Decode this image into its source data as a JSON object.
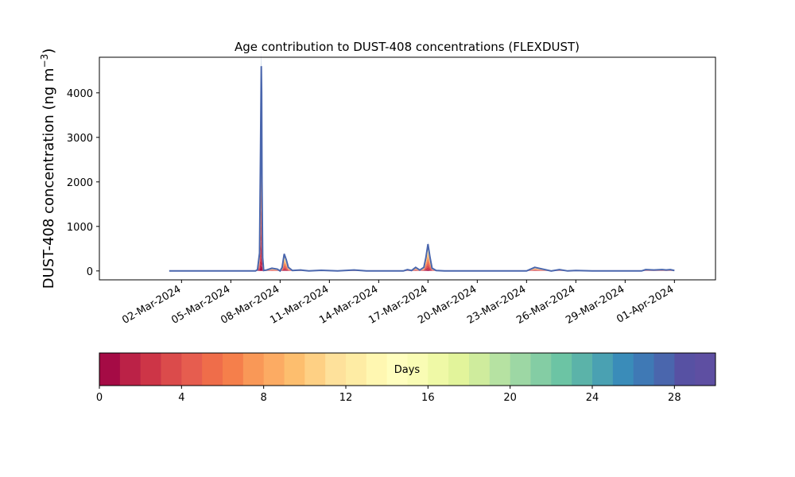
{
  "chart_data": {
    "type": "area",
    "title": "Age contribution to DUST-408 concentrations (FLEXDUST)",
    "ylabel": "DUST-408 concentration (ng m",
    "ylabel_sup": "−3",
    "ylabel_close": ")",
    "xlabel": "",
    "ylim": [
      -200,
      4800
    ],
    "yticks": [
      0,
      1000,
      2000,
      3000,
      4000
    ],
    "x_range": [
      "2024-02-26T00:00",
      "2024-04-03T12:00"
    ],
    "xticks": [
      "02-Mar-2024",
      "05-Mar-2024",
      "08-Mar-2024",
      "11-Mar-2024",
      "14-Mar-2024",
      "17-Mar-2024",
      "20-Mar-2024",
      "23-Mar-2024",
      "26-Mar-2024",
      "29-Mar-2024",
      "01-Apr-2024"
    ],
    "xtick_dates": [
      "2024-03-02",
      "2024-03-05",
      "2024-03-08",
      "2024-03-11",
      "2024-03-14",
      "2024-03-17",
      "2024-03-20",
      "2024-03-23",
      "2024-03-26",
      "2024-03-29",
      "2024-04-01"
    ],
    "total_series": {
      "name": "",
      "color": "#4a66ad",
      "x": [
        "2024-03-01T06:00",
        "2024-03-06T12:00",
        "2024-03-06T15:00",
        "2024-03-06T18:00",
        "2024-03-06T19:30",
        "2024-03-06T20:30",
        "2024-03-06T21:00",
        "2024-03-06T21:30",
        "2024-03-06T22:30",
        "2024-03-07T00:00",
        "2024-03-07T04:00",
        "2024-03-07T12:00",
        "2024-03-07T20:00",
        "2024-03-08T00:00",
        "2024-03-08T03:00",
        "2024-03-08T06:00",
        "2024-03-08T09:00",
        "2024-03-08T12:00",
        "2024-03-08T18:00",
        "2024-03-09T06:00",
        "2024-03-09T18:00",
        "2024-03-10T12:00",
        "2024-03-11T12:00",
        "2024-03-12T12:00",
        "2024-03-13T06:00",
        "2024-03-13T12:00",
        "2024-03-14T12:00",
        "2024-03-15T12:00",
        "2024-03-15T18:00",
        "2024-03-16T00:00",
        "2024-03-16T06:00",
        "2024-03-16T12:00",
        "2024-03-16T18:00",
        "2024-03-16T21:00",
        "2024-03-17T00:00",
        "2024-03-17T03:00",
        "2024-03-17T06:00",
        "2024-03-17T12:00",
        "2024-03-18T00:00",
        "2024-03-20T00:00",
        "2024-03-23T00:00",
        "2024-03-23T12:00",
        "2024-03-24T00:00",
        "2024-03-24T12:00",
        "2024-03-25T00:00",
        "2024-03-25T12:00",
        "2024-03-26T00:00",
        "2024-03-27T00:00",
        "2024-03-28T00:00",
        "2024-03-29T00:00",
        "2024-03-30T00:00",
        "2024-03-30T06:00",
        "2024-03-30T18:00",
        "2024-03-31T06:00",
        "2024-03-31T12:00",
        "2024-03-31T18:00",
        "2024-04-01T00:00"
      ],
      "values": [
        0,
        0,
        30,
        400,
        2800,
        4600,
        4000,
        2000,
        300,
        10,
        20,
        60,
        40,
        0,
        80,
        380,
        250,
        80,
        10,
        20,
        0,
        15,
        0,
        20,
        0,
        0,
        0,
        0,
        30,
        10,
        80,
        20,
        80,
        300,
        600,
        300,
        60,
        10,
        0,
        0,
        0,
        80,
        40,
        0,
        30,
        0,
        10,
        0,
        0,
        0,
        0,
        30,
        20,
        30,
        20,
        30,
        10
      ]
    },
    "colorbar": {
      "label": "Days",
      "vmin": 0,
      "vmax": 30,
      "ticks": [
        0,
        4,
        8,
        12,
        16,
        20,
        24,
        28
      ],
      "colors": [
        "#a50b45",
        "#bb2247",
        "#cd3547",
        "#db4b4b",
        "#e65d4f",
        "#ef6d4a",
        "#f57f4b",
        "#f99857",
        "#fcab63",
        "#fdbe6e",
        "#fed084",
        "#fee19b",
        "#feeca4",
        "#fff7b1",
        "#fffebe",
        "#f9fcb4",
        "#eff9a6",
        "#e2f49b",
        "#cfec9d",
        "#b6e2a2",
        "#9dd7a4",
        "#84cda4",
        "#6cc4a4",
        "#5bb3a9",
        "#4aa1b2",
        "#3a8cb9",
        "#3f79b5",
        "#4a66ad",
        "#5751a3",
        "#5e4fa2"
      ]
    }
  }
}
